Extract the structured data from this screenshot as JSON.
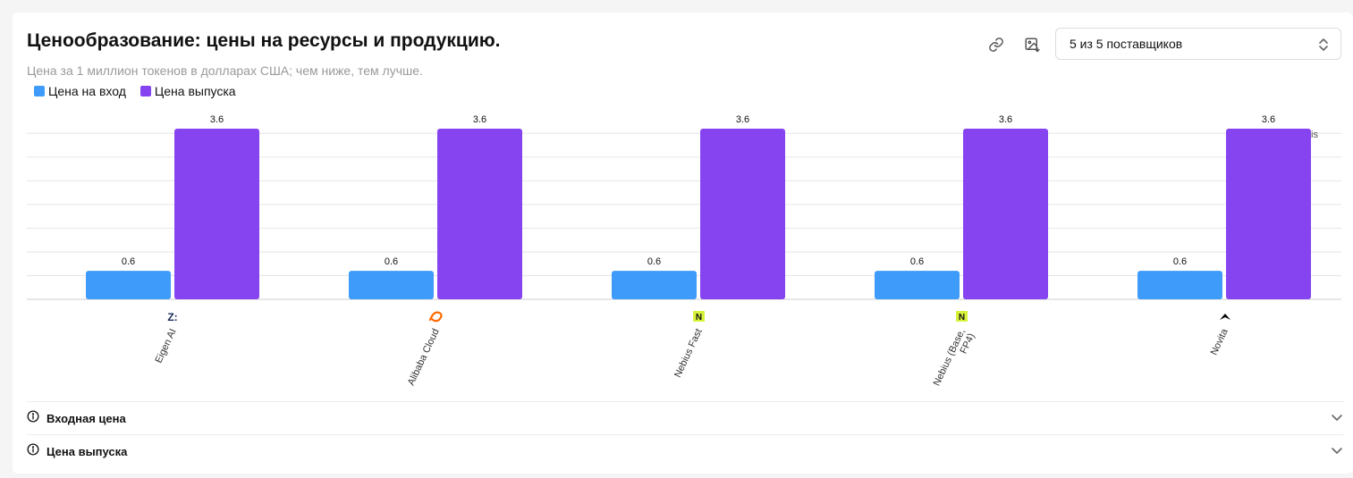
{
  "header": {
    "title": "Ценообразование: цены на ресурсы и продукцию.",
    "subtitle": "Цена за 1 миллион токенов в долларах США; чем ниже, тем лучше."
  },
  "toolbar": {
    "link_icon": "link-icon",
    "image_icon": "image-download-icon",
    "provider_select_value": "5 из 5 поставщиков"
  },
  "legend": [
    {
      "label": "Цена на вход",
      "color": "#3e9bf9"
    },
    {
      "label": "Цена выпуска",
      "color": "#8644f1"
    }
  ],
  "watermark": "al Analysis",
  "chart_data": {
    "type": "bar",
    "categories": [
      "Eigen AI",
      "Alibaba Cloud",
      "Nebius Fast",
      "Nebius (Base, FP4)",
      "Novita"
    ],
    "series": [
      {
        "name": "Цена на вход",
        "color": "#3e9bf9",
        "values": [
          0.6,
          0.6,
          0.6,
          0.6,
          0.6
        ]
      },
      {
        "name": "Цена выпуска",
        "color": "#8644f1",
        "values": [
          3.6,
          3.6,
          3.6,
          3.6,
          3.6
        ]
      }
    ],
    "ylim": [
      0,
      3.6
    ],
    "grid": true,
    "legend_position": "top-left",
    "provider_logos": [
      "eigen-logo-icon",
      "alibaba-logo-icon",
      "nebius-logo-icon",
      "nebius-logo-icon",
      "novita-logo-icon"
    ],
    "logo_colors": [
      "#1a2a5a",
      "#ff6a00",
      "#d8f23c",
      "#d8f23c",
      "#000000"
    ]
  },
  "accordions": [
    {
      "label": "Входная цена",
      "icon": "info-icon"
    },
    {
      "label": "Цена выпуска",
      "icon": "info-icon"
    }
  ]
}
